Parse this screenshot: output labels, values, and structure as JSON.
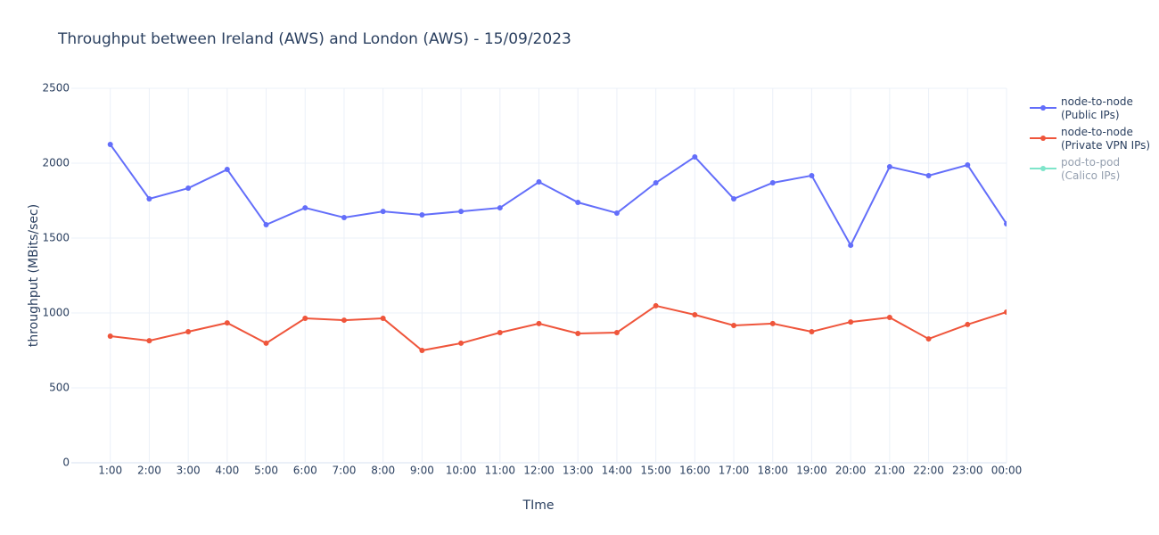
{
  "chart_data": {
    "type": "line",
    "title": "Throughput between Ireland (AWS) and London (AWS)   -   15/09/2023",
    "x_label": "TIme",
    "y_label": "throughput (MBits/sec)",
    "categories": [
      "1:00",
      "2:00",
      "3:00",
      "4:00",
      "5:00",
      "6:00",
      "7:00",
      "8:00",
      "9:00",
      "10:00",
      "11:00",
      "12:00",
      "13:00",
      "14:00",
      "15:00",
      "16:00",
      "17:00",
      "18:00",
      "19:00",
      "20:00",
      "21:00",
      "22:00",
      "23:00",
      "00:00"
    ],
    "series": [
      {
        "name": "node-to-node\n(Public IPs)",
        "color": "#636efa",
        "values": [
          2125,
          1762,
          1833,
          1958,
          1589,
          1702,
          1637,
          1678,
          1655,
          1678,
          1702,
          1875,
          1738,
          1667,
          1869,
          2042,
          1762,
          1869,
          1917,
          1452,
          1976,
          1917,
          1988,
          1595
        ]
      },
      {
        "name": "node-to-node\n(Private VPN IPs)",
        "color": "#ef553b",
        "values": [
          845,
          815,
          875,
          934,
          798,
          964,
          952,
          964,
          750,
          798,
          869,
          929,
          863,
          869,
          1048,
          988,
          917,
          929,
          875,
          940,
          970,
          827,
          923,
          1006
        ]
      },
      {
        "name": "pod-to-pod\n(Calico IPs)",
        "color": "#00cc96",
        "visible": "legendonly",
        "values": [
          null,
          null,
          null,
          null,
          null,
          null,
          null,
          null,
          null,
          null,
          null,
          null,
          null,
          null,
          null,
          null,
          null,
          null,
          null,
          null,
          null,
          null,
          null,
          null
        ]
      }
    ],
    "ylim": [
      0,
      2500
    ],
    "yticks": [
      0,
      500,
      1000,
      1500,
      2000,
      2500
    ],
    "grid": true
  }
}
